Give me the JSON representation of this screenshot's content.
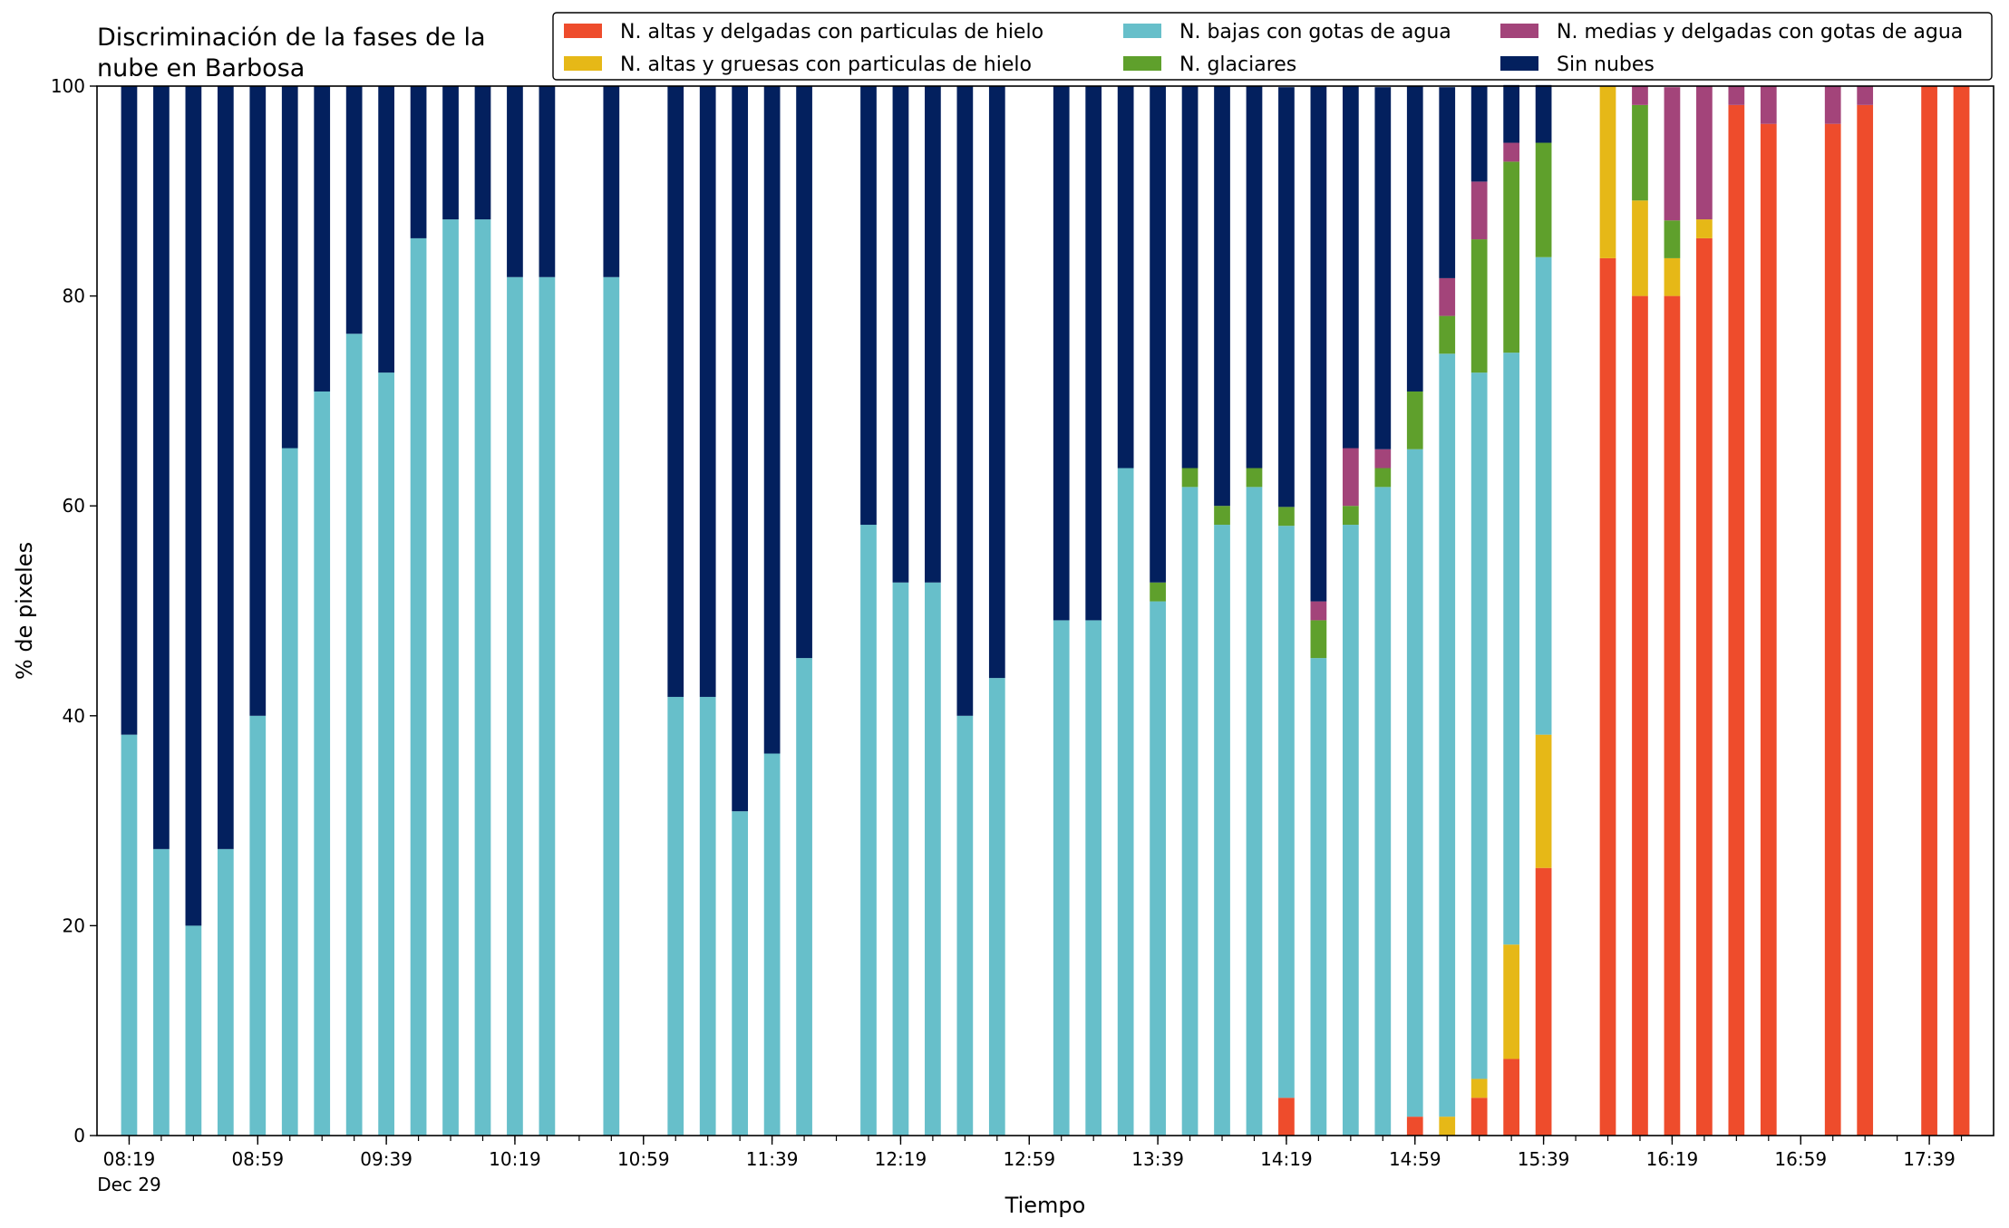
{
  "chart_data": {
    "type": "bar",
    "stacked": true,
    "title": "Discriminación de la fases de la nube en Barbosa",
    "title_lines": [
      "Discriminación de la fases de la",
      "nube en Barbosa"
    ],
    "xlabel": "Tiempo",
    "ylabel": "% de pixeles",
    "ylim": [
      0,
      100
    ],
    "yticks": [
      "0",
      "20",
      "40",
      "60",
      "80",
      "100"
    ],
    "xtick_labels": [
      "08:19",
      "08:59",
      "09:39",
      "10:19",
      "10:59",
      "11:39",
      "12:19",
      "12:59",
      "13:39",
      "14:19",
      "14:59",
      "15:39",
      "16:19",
      "16:59",
      "17:39"
    ],
    "xtick_sublabel": "Dec 29",
    "legend_position": "top-right",
    "x": [
      "08:19",
      "08:29",
      "08:39",
      "08:49",
      "08:59",
      "09:09",
      "09:19",
      "09:29",
      "09:39",
      "09:49",
      "09:59",
      "10:09",
      "10:19",
      "10:29",
      "10:39",
      "10:49",
      "10:59",
      "11:09",
      "11:19",
      "11:29",
      "11:39",
      "11:49",
      "11:59",
      "12:09",
      "12:19",
      "12:29",
      "12:39",
      "12:49",
      "12:59",
      "13:09",
      "13:19",
      "13:29",
      "13:39",
      "13:49",
      "13:59",
      "14:09",
      "14:19",
      "14:29",
      "14:39",
      "14:49",
      "14:59",
      "15:09",
      "15:19",
      "15:29",
      "15:39",
      "15:49",
      "15:59",
      "16:09",
      "16:19",
      "16:29",
      "16:39",
      "16:49",
      "16:59",
      "17:09",
      "17:19",
      "17:29",
      "17:39",
      "17:49"
    ],
    "series": [
      {
        "name": "N. altas y delgadas con particulas de hielo",
        "color": "#ee4c2c",
        "values": [
          0,
          0,
          0,
          0,
          0,
          0,
          0,
          0,
          0,
          0,
          0,
          0,
          0,
          0,
          0,
          0,
          0,
          0,
          0,
          0,
          0,
          0,
          0,
          0,
          0,
          0,
          0,
          0,
          0,
          0,
          0,
          0,
          0,
          0,
          0,
          0,
          3.6,
          0,
          0,
          0,
          1.8,
          0,
          3.6,
          7.3,
          25.5,
          null,
          83.6,
          80,
          80,
          85.5,
          98.2,
          96.4,
          null,
          96.4,
          98.2,
          null,
          100,
          100
        ]
      },
      {
        "name": "N. altas y gruesas con particulas de hielo",
        "color": "#e6b817",
        "values": [
          0,
          0,
          0,
          0,
          0,
          0,
          0,
          0,
          0,
          0,
          0,
          0,
          0,
          0,
          0,
          0,
          0,
          0,
          0,
          0,
          0,
          0,
          0,
          0,
          0,
          0,
          0,
          0,
          0,
          0,
          0,
          0,
          0,
          0,
          0,
          0,
          0,
          0,
          0,
          0,
          0,
          1.8,
          1.8,
          10.9,
          12.7,
          null,
          16.4,
          9.1,
          3.6,
          1.8,
          0,
          0,
          null,
          0,
          0,
          null,
          0,
          0
        ]
      },
      {
        "name": "N. bajas con gotas de agua",
        "color": "#67bfca",
        "values": [
          38.2,
          27.3,
          20,
          27.3,
          40,
          65.5,
          70.9,
          76.4,
          72.7,
          85.5,
          87.3,
          87.3,
          81.8,
          81.8,
          null,
          81.8,
          null,
          41.8,
          41.8,
          30.9,
          36.4,
          45.5,
          null,
          58.2,
          52.7,
          52.7,
          40,
          43.6,
          null,
          49.1,
          49.1,
          63.6,
          50.9,
          61.8,
          58.2,
          61.8,
          54.5,
          45.5,
          58.2,
          61.8,
          63.6,
          72.7,
          67.3,
          56.4,
          45.5,
          null,
          0,
          0,
          0,
          0,
          0,
          0,
          null,
          0,
          0,
          null,
          0,
          0
        ]
      },
      {
        "name": "N. glaciares",
        "color": "#5fa02c",
        "values": [
          0,
          0,
          0,
          0,
          0,
          0,
          0,
          0,
          0,
          0,
          0,
          0,
          0,
          0,
          null,
          0,
          null,
          0,
          0,
          0,
          0,
          0,
          null,
          0,
          0,
          0,
          0,
          0,
          null,
          0,
          0,
          0,
          1.8,
          1.8,
          1.8,
          1.8,
          1.8,
          3.6,
          1.8,
          1.8,
          5.5,
          3.6,
          12.7,
          18.2,
          10.9,
          null,
          0,
          9.1,
          3.6,
          0,
          0,
          0,
          null,
          0,
          0,
          null,
          0,
          0
        ]
      },
      {
        "name": "N. medias y delgadas con gotas de agua",
        "color": "#a3447a",
        "values": [
          0,
          0,
          0,
          0,
          0,
          0,
          0,
          0,
          0,
          0,
          0,
          0,
          0,
          0,
          null,
          0,
          null,
          0,
          0,
          0,
          0,
          0,
          null,
          0,
          0,
          0,
          0,
          0,
          null,
          0,
          0,
          0,
          0,
          0,
          0,
          0,
          0,
          1.8,
          5.5,
          1.8,
          0,
          3.6,
          5.5,
          1.8,
          0,
          null,
          0,
          1.8,
          12.7,
          12.7,
          1.8,
          3.6,
          null,
          3.6,
          1.8,
          null,
          0,
          0
        ]
      },
      {
        "name": "Sin nubes",
        "color": "#03205e",
        "values": [
          61.8,
          72.7,
          80,
          72.7,
          60,
          34.5,
          29.1,
          23.6,
          27.3,
          14.5,
          12.7,
          12.7,
          18.2,
          18.2,
          null,
          18.2,
          null,
          58.2,
          58.2,
          69.1,
          63.6,
          54.5,
          null,
          41.8,
          47.3,
          47.3,
          60,
          56.4,
          null,
          50.9,
          50.9,
          36.4,
          47.3,
          36.4,
          40,
          36.4,
          40,
          49.1,
          34.5,
          34.5,
          29.1,
          18.2,
          9.1,
          5.5,
          5.5,
          null,
          0,
          0,
          0,
          0,
          0,
          0,
          null,
          0,
          0,
          null,
          0,
          0
        ]
      }
    ]
  }
}
